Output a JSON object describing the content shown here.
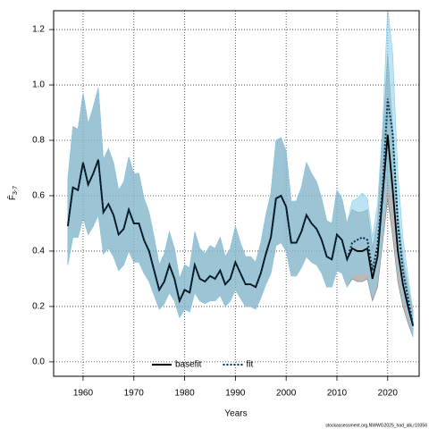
{
  "chart_data": {
    "type": "line",
    "xlabel": "Years",
    "ylabel": "F̄",
    "ylabel_sub": "3-7",
    "footer": "stockassessment.org,NWWG2025_had_alk,r19356",
    "x": [
      1957,
      1958,
      1959,
      1960,
      1961,
      1962,
      1963,
      1964,
      1965,
      1966,
      1967,
      1968,
      1969,
      1970,
      1971,
      1972,
      1973,
      1974,
      1975,
      1976,
      1977,
      1978,
      1979,
      1980,
      1981,
      1982,
      1983,
      1984,
      1985,
      1986,
      1987,
      1988,
      1989,
      1990,
      1991,
      1992,
      1993,
      1994,
      1995,
      1996,
      1997,
      1998,
      1999,
      2000,
      2001,
      2002,
      2003,
      2004,
      2005,
      2006,
      2007,
      2008,
      2009,
      2010,
      2011,
      2012,
      2013,
      2014,
      2015,
      2016,
      2017,
      2018,
      2019,
      2020,
      2021,
      2022,
      2023,
      2024,
      2025
    ],
    "series": [
      {
        "name": "basefit",
        "color": "#000000",
        "band_color": "#808080",
        "dash": false,
        "values": [
          0.49,
          0.63,
          0.62,
          0.72,
          0.64,
          0.68,
          0.73,
          0.54,
          0.57,
          0.53,
          0.46,
          0.48,
          0.55,
          0.5,
          0.5,
          0.44,
          0.4,
          0.33,
          0.26,
          0.29,
          0.35,
          0.3,
          0.22,
          0.26,
          0.25,
          0.35,
          0.3,
          0.29,
          0.31,
          0.3,
          0.33,
          0.28,
          0.3,
          0.36,
          0.32,
          0.28,
          0.28,
          0.27,
          0.32,
          0.39,
          0.45,
          0.59,
          0.6,
          0.56,
          0.43,
          0.43,
          0.47,
          0.53,
          0.5,
          0.48,
          0.44,
          0.38,
          0.37,
          0.46,
          0.44,
          0.37,
          0.41,
          0.4,
          0.4,
          0.41,
          0.3,
          0.38,
          0.6,
          0.82,
          0.62,
          0.4,
          0.28,
          0.2,
          0.13
        ],
        "lower": [
          0.35,
          0.45,
          0.45,
          0.52,
          0.46,
          0.49,
          0.53,
          0.39,
          0.41,
          0.38,
          0.33,
          0.35,
          0.4,
          0.36,
          0.36,
          0.32,
          0.29,
          0.24,
          0.19,
          0.21,
          0.25,
          0.22,
          0.16,
          0.19,
          0.18,
          0.25,
          0.22,
          0.21,
          0.22,
          0.22,
          0.24,
          0.2,
          0.22,
          0.26,
          0.23,
          0.2,
          0.2,
          0.19,
          0.23,
          0.28,
          0.32,
          0.42,
          0.43,
          0.4,
          0.31,
          0.31,
          0.34,
          0.38,
          0.36,
          0.35,
          0.32,
          0.27,
          0.27,
          0.33,
          0.32,
          0.27,
          0.3,
          0.29,
          0.29,
          0.3,
          0.22,
          0.27,
          0.43,
          0.59,
          0.45,
          0.29,
          0.2,
          0.14,
          0.09
        ],
        "upper": [
          0.66,
          0.85,
          0.84,
          0.97,
          0.86,
          0.92,
          0.99,
          0.73,
          0.77,
          0.72,
          0.62,
          0.65,
          0.74,
          0.68,
          0.68,
          0.59,
          0.54,
          0.45,
          0.35,
          0.39,
          0.47,
          0.41,
          0.3,
          0.35,
          0.34,
          0.47,
          0.41,
          0.39,
          0.42,
          0.41,
          0.45,
          0.38,
          0.41,
          0.49,
          0.43,
          0.38,
          0.38,
          0.36,
          0.43,
          0.53,
          0.61,
          0.8,
          0.81,
          0.76,
          0.58,
          0.58,
          0.63,
          0.72,
          0.68,
          0.65,
          0.59,
          0.51,
          0.5,
          0.62,
          0.59,
          0.5,
          0.55,
          0.54,
          0.54,
          0.55,
          0.41,
          0.51,
          0.81,
          1.11,
          0.84,
          0.54,
          0.38,
          0.27,
          0.18
        ]
      },
      {
        "name": "fit",
        "color": "#00334d",
        "band_color": "#87ceeb",
        "dash": true,
        "values": [
          0.49,
          0.63,
          0.62,
          0.72,
          0.64,
          0.68,
          0.73,
          0.54,
          0.57,
          0.53,
          0.46,
          0.48,
          0.55,
          0.5,
          0.5,
          0.44,
          0.4,
          0.33,
          0.26,
          0.29,
          0.35,
          0.3,
          0.22,
          0.26,
          0.25,
          0.35,
          0.3,
          0.29,
          0.31,
          0.3,
          0.33,
          0.28,
          0.3,
          0.36,
          0.32,
          0.28,
          0.28,
          0.27,
          0.32,
          0.39,
          0.45,
          0.59,
          0.6,
          0.56,
          0.43,
          0.43,
          0.47,
          0.53,
          0.5,
          0.48,
          0.44,
          0.38,
          0.37,
          0.46,
          0.44,
          0.37,
          0.43,
          0.44,
          0.45,
          0.44,
          0.33,
          0.42,
          0.63,
          0.95,
          0.82,
          0.5,
          0.33,
          0.23,
          0.13
        ],
        "lower": [
          0.35,
          0.45,
          0.45,
          0.52,
          0.46,
          0.49,
          0.53,
          0.39,
          0.41,
          0.38,
          0.33,
          0.35,
          0.4,
          0.36,
          0.36,
          0.32,
          0.29,
          0.24,
          0.19,
          0.21,
          0.25,
          0.22,
          0.16,
          0.19,
          0.18,
          0.25,
          0.22,
          0.21,
          0.22,
          0.22,
          0.24,
          0.2,
          0.22,
          0.26,
          0.23,
          0.2,
          0.2,
          0.19,
          0.23,
          0.28,
          0.32,
          0.42,
          0.43,
          0.4,
          0.31,
          0.31,
          0.34,
          0.38,
          0.36,
          0.35,
          0.32,
          0.27,
          0.27,
          0.33,
          0.32,
          0.27,
          0.31,
          0.32,
          0.32,
          0.32,
          0.24,
          0.3,
          0.45,
          0.68,
          0.59,
          0.36,
          0.24,
          0.17,
          0.09
        ],
        "upper": [
          0.66,
          0.85,
          0.84,
          0.97,
          0.86,
          0.92,
          0.99,
          0.73,
          0.77,
          0.72,
          0.62,
          0.65,
          0.74,
          0.68,
          0.68,
          0.59,
          0.54,
          0.45,
          0.35,
          0.39,
          0.47,
          0.41,
          0.3,
          0.35,
          0.34,
          0.47,
          0.41,
          0.39,
          0.42,
          0.41,
          0.45,
          0.38,
          0.41,
          0.49,
          0.43,
          0.38,
          0.38,
          0.36,
          0.43,
          0.53,
          0.61,
          0.8,
          0.81,
          0.76,
          0.58,
          0.58,
          0.63,
          0.72,
          0.68,
          0.65,
          0.59,
          0.51,
          0.5,
          0.62,
          0.59,
          0.5,
          0.58,
          0.59,
          0.61,
          0.59,
          0.45,
          0.57,
          0.85,
          1.28,
          1.11,
          0.68,
          0.45,
          0.31,
          0.18
        ]
      }
    ],
    "xlim": [
      1954.2,
      2026.2
    ],
    "xticks": [
      1960,
      1970,
      1980,
      1990,
      2000,
      2010,
      2020
    ],
    "ylim": [
      -0.052,
      1.268
    ],
    "yticks": [
      {
        "value": 0,
        "label": "0.0"
      },
      0.2,
      0.4,
      0.6,
      0.8,
      {
        "value": 1,
        "label": "1.0"
      },
      1.2
    ],
    "grid": true,
    "legend": "bottom"
  }
}
